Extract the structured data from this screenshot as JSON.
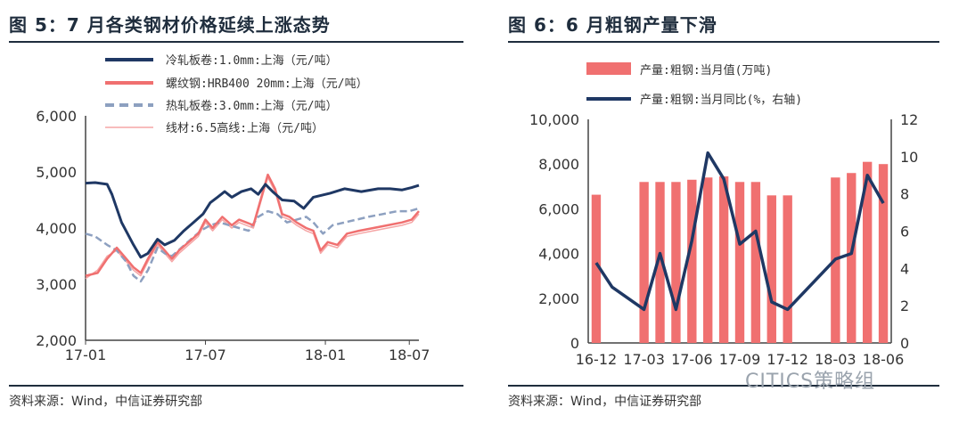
{
  "figures": [
    {
      "title": "图 5：7 月各类钢材价格延续上涨态势",
      "source": "资料来源：Wind，中信证券研究部"
    },
    {
      "title": "图 6：6 月粗钢产量下滑",
      "source": "资料来源：Wind，中信证券研究部"
    }
  ],
  "watermark": "CITICS策略组",
  "chart_data": [
    {
      "type": "line",
      "x_labels": [
        "17-01",
        "17-07",
        "18-01",
        "18-07"
      ],
      "ylim": [
        2000,
        6000
      ],
      "y_ticks": [
        "2,000",
        "3,000",
        "4,000",
        "5,000",
        "6,000"
      ],
      "grid": false,
      "legend_position": "top",
      "series": [
        {
          "name": "冷轧板卷:1.0mm:上海（元/吨）",
          "color": "#1f3864",
          "style": "solid",
          "points": [
            [
              0,
              4800
            ],
            [
              0.04,
              4810
            ],
            [
              0.09,
              4780
            ],
            [
              0.11,
              4600
            ],
            [
              0.15,
              4100
            ],
            [
              0.2,
              3700
            ],
            [
              0.23,
              3480
            ],
            [
              0.26,
              3550
            ],
            [
              0.3,
              3800
            ],
            [
              0.33,
              3700
            ],
            [
              0.37,
              3780
            ],
            [
              0.41,
              3950
            ],
            [
              0.45,
              4100
            ],
            [
              0.49,
              4250
            ],
            [
              0.52,
              4450
            ],
            [
              0.55,
              4550
            ],
            [
              0.58,
              4650
            ],
            [
              0.61,
              4550
            ],
            [
              0.65,
              4650
            ],
            [
              0.69,
              4700
            ],
            [
              0.72,
              4600
            ],
            [
              0.75,
              4780
            ],
            [
              0.78,
              4650
            ],
            [
              0.82,
              4500
            ],
            [
              0.87,
              4480
            ],
            [
              0.91,
              4350
            ],
            [
              0.95,
              4550
            ],
            [
              1.02,
              4620
            ],
            [
              1.08,
              4700
            ],
            [
              1.15,
              4650
            ],
            [
              1.22,
              4700
            ],
            [
              1.27,
              4700
            ],
            [
              1.32,
              4680
            ],
            [
              1.36,
              4720
            ],
            [
              1.39,
              4760
            ]
          ]
        },
        {
          "name": "螺纹钢:HRB400 20mm:上海（元/吨）",
          "color": "#f07070",
          "style": "solid",
          "points": [
            [
              0,
              3150
            ],
            [
              0.05,
              3200
            ],
            [
              0.09,
              3450
            ],
            [
              0.13,
              3650
            ],
            [
              0.16,
              3500
            ],
            [
              0.2,
              3300
            ],
            [
              0.23,
              3200
            ],
            [
              0.26,
              3450
            ],
            [
              0.3,
              3750
            ],
            [
              0.33,
              3600
            ],
            [
              0.36,
              3450
            ],
            [
              0.39,
              3600
            ],
            [
              0.43,
              3750
            ],
            [
              0.47,
              3900
            ],
            [
              0.5,
              4150
            ],
            [
              0.53,
              4000
            ],
            [
              0.57,
              4200
            ],
            [
              0.61,
              4050
            ],
            [
              0.64,
              4150
            ],
            [
              0.67,
              4100
            ],
            [
              0.7,
              4050
            ],
            [
              0.73,
              4500
            ],
            [
              0.76,
              4950
            ],
            [
              0.79,
              4700
            ],
            [
              0.82,
              4250
            ],
            [
              0.85,
              4200
            ],
            [
              0.88,
              4100
            ],
            [
              0.92,
              4000
            ],
            [
              0.95,
              3950
            ],
            [
              0.98,
              3600
            ],
            [
              1.01,
              3750
            ],
            [
              1.05,
              3700
            ],
            [
              1.09,
              3900
            ],
            [
              1.14,
              3950
            ],
            [
              1.2,
              4000
            ],
            [
              1.26,
              4050
            ],
            [
              1.32,
              4100
            ],
            [
              1.36,
              4150
            ],
            [
              1.39,
              4300
            ]
          ]
        },
        {
          "name": "热轧板卷:3.0mm:上海（元/吨）",
          "color": "#8da0c0",
          "style": "dashed",
          "points": [
            [
              0,
              3900
            ],
            [
              0.04,
              3850
            ],
            [
              0.09,
              3700
            ],
            [
              0.13,
              3600
            ],
            [
              0.17,
              3400
            ],
            [
              0.2,
              3150
            ],
            [
              0.23,
              3050
            ],
            [
              0.26,
              3250
            ],
            [
              0.3,
              3650
            ],
            [
              0.33,
              3550
            ],
            [
              0.36,
              3500
            ],
            [
              0.4,
              3650
            ],
            [
              0.44,
              3800
            ],
            [
              0.48,
              3950
            ],
            [
              0.52,
              4050
            ],
            [
              0.56,
              4100
            ],
            [
              0.6,
              4050
            ],
            [
              0.64,
              4000
            ],
            [
              0.68,
              3950
            ],
            [
              0.72,
              4200
            ],
            [
              0.76,
              4300
            ],
            [
              0.8,
              4250
            ],
            [
              0.84,
              4100
            ],
            [
              0.88,
              4150
            ],
            [
              0.92,
              4200
            ],
            [
              0.95,
              4100
            ],
            [
              0.99,
              3900
            ],
            [
              1.03,
              4050
            ],
            [
              1.08,
              4100
            ],
            [
              1.13,
              4150
            ],
            [
              1.18,
              4200
            ],
            [
              1.24,
              4250
            ],
            [
              1.3,
              4300
            ],
            [
              1.35,
              4300
            ],
            [
              1.39,
              4350
            ]
          ]
        },
        {
          "name": "线材:6.5高线:上海（元/吨）",
          "color": "#f5a5a5",
          "style": "solid",
          "points": [
            [
              0,
              3100
            ],
            [
              0.05,
              3250
            ],
            [
              0.09,
              3500
            ],
            [
              0.13,
              3600
            ],
            [
              0.16,
              3450
            ],
            [
              0.2,
              3250
            ],
            [
              0.23,
              3150
            ],
            [
              0.26,
              3400
            ],
            [
              0.3,
              3700
            ],
            [
              0.33,
              3550
            ],
            [
              0.36,
              3400
            ],
            [
              0.39,
              3550
            ],
            [
              0.43,
              3700
            ],
            [
              0.47,
              3850
            ],
            [
              0.5,
              4100
            ],
            [
              0.53,
              3950
            ],
            [
              0.57,
              4150
            ],
            [
              0.61,
              4000
            ],
            [
              0.64,
              4100
            ],
            [
              0.67,
              4050
            ],
            [
              0.7,
              4000
            ],
            [
              0.73,
              4450
            ],
            [
              0.76,
              4900
            ],
            [
              0.79,
              4650
            ],
            [
              0.82,
              4200
            ],
            [
              0.85,
              4150
            ],
            [
              0.88,
              4050
            ],
            [
              0.92,
              3950
            ],
            [
              0.95,
              3900
            ],
            [
              0.98,
              3550
            ],
            [
              1.01,
              3700
            ],
            [
              1.05,
              3650
            ],
            [
              1.09,
              3850
            ],
            [
              1.14,
              3900
            ],
            [
              1.2,
              3950
            ],
            [
              1.26,
              4000
            ],
            [
              1.32,
              4050
            ],
            [
              1.36,
              4100
            ],
            [
              1.39,
              4250
            ]
          ]
        }
      ]
    },
    {
      "type": "bar+line",
      "x_labels": [
        "16-12",
        "17-03",
        "17-06",
        "17-09",
        "17-12",
        "18-03",
        "18-06"
      ],
      "ylim_left": [
        0,
        10000
      ],
      "ylim_right": [
        0,
        12
      ],
      "y_ticks_left": [
        "0",
        "2,000",
        "4,000",
        "6,000",
        "8,000",
        "10,000"
      ],
      "y_ticks_right": [
        "0",
        "2",
        "4",
        "6",
        "8",
        "10",
        "12"
      ],
      "legend_position": "top",
      "series": [
        {
          "name": "产量:粗钢:当月值(万吨)",
          "kind": "bar",
          "axis": "left",
          "color": "#f07070",
          "values": [
            6630,
            null,
            null,
            7200,
            7200,
            7200,
            7300,
            7400,
            7450,
            7200,
            7200,
            6600,
            6600,
            null,
            null,
            7400,
            7600,
            8100,
            8000
          ]
        },
        {
          "name": "产量:粗钢:当月同比(%，右轴)",
          "kind": "line",
          "axis": "right",
          "color": "#1f3864",
          "values": [
            4.3,
            3.0,
            null,
            1.8,
            4.8,
            1.8,
            5.5,
            10.2,
            8.8,
            5.3,
            6.0,
            2.2,
            1.8,
            null,
            null,
            4.5,
            4.8,
            9.0,
            7.5
          ]
        }
      ]
    }
  ]
}
